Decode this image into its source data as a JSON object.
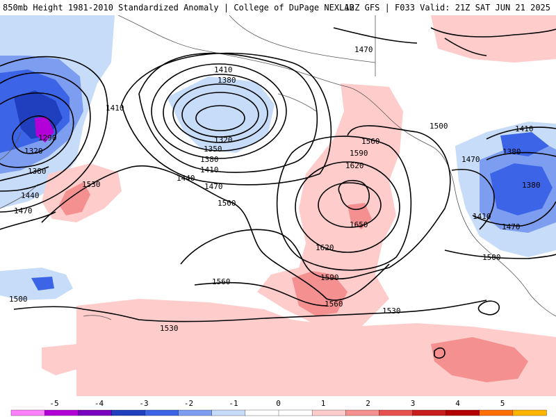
{
  "header": {
    "title_left": "850mb Height 1981-2010 Standardized Anomaly | College of DuPage NEXLAB",
    "title_right": "12Z GFS | F033 Valid: 21Z SAT JUN 21 2025"
  },
  "contour_labels": [
    "1410",
    "1380",
    "1320",
    "1350",
    "1380",
    "1410",
    "1440",
    "1470",
    "1500",
    "1410",
    "1290",
    "1320",
    "1380",
    "1440",
    "1470",
    "1530",
    "1560",
    "1590",
    "1620",
    "1650",
    "1620",
    "1590",
    "1560",
    "1560",
    "1530",
    "1530",
    "1500",
    "1470",
    "1500",
    "1410",
    "1380",
    "1380",
    "1470",
    "1410",
    "1470",
    "1500"
  ],
  "colorbar": {
    "ticks": [
      "-5",
      "-4",
      "-3",
      "-2",
      "-1",
      "0",
      "1",
      "2",
      "3",
      "4",
      "5"
    ],
    "colors": [
      "#ff80ff",
      "#b400d8",
      "#7a00c0",
      "#1f3fbf",
      "#3c64e6",
      "#7d9ef0",
      "#c6dcf8",
      "#ffffff",
      "#ffffff",
      "#ffcccc",
      "#f59090",
      "#e85050",
      "#c81e1e",
      "#b40000",
      "#ff6e00",
      "#ffb400"
    ]
  }
}
